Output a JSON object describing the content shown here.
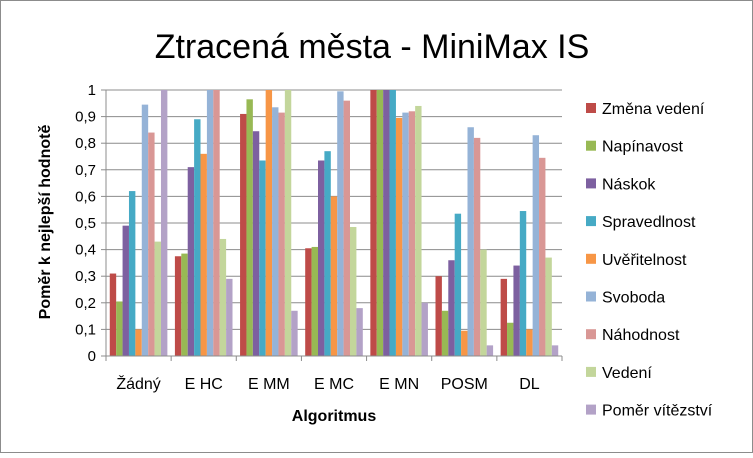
{
  "chart_data": {
    "type": "bar",
    "title": "Ztracená města - MiniMax IS",
    "xlabel": "Algoritmus",
    "ylabel": "Poměr k nejlepší hodnotě",
    "ylim": [
      0,
      1
    ],
    "yticks": [
      "0",
      "0,1",
      "0,2",
      "0,3",
      "0,4",
      "0,5",
      "0,6",
      "0,7",
      "0,8",
      "0,9",
      "1"
    ],
    "grid": true,
    "legend_position": "right",
    "categories": [
      "Žádný",
      "E HC",
      "E MM",
      "E MC",
      "E MN",
      "POSM",
      "DL"
    ],
    "series": [
      {
        "name": "Změna vedení",
        "color": "#BE4B48",
        "values": [
          0.31,
          0.375,
          0.91,
          0.405,
          1.0,
          0.3,
          0.29
        ]
      },
      {
        "name": "Napínavost",
        "color": "#98B954",
        "values": [
          0.205,
          0.385,
          0.965,
          0.41,
          1.0,
          0.17,
          0.125
        ]
      },
      {
        "name": "Náskok",
        "color": "#7D60A0",
        "values": [
          0.49,
          0.71,
          0.845,
          0.735,
          1.0,
          0.36,
          0.34
        ]
      },
      {
        "name": "Spravedlnost",
        "color": "#46AAC5",
        "values": [
          0.62,
          0.89,
          0.735,
          0.77,
          1.0,
          0.535,
          0.545
        ]
      },
      {
        "name": "Uvěřitelnost",
        "color": "#F79646",
        "values": [
          0.1,
          0.76,
          1.0,
          0.6,
          0.895,
          0.095,
          0.1
        ]
      },
      {
        "name": "Svoboda",
        "color": "#95B3D7",
        "values": [
          0.945,
          1.0,
          0.935,
          0.995,
          0.915,
          0.86,
          0.83
        ]
      },
      {
        "name": "Náhodnost",
        "color": "#D99795",
        "values": [
          0.84,
          1.0,
          0.915,
          0.96,
          0.92,
          0.82,
          0.745
        ]
      },
      {
        "name": "Vedení",
        "color": "#C3D69B",
        "values": [
          0.43,
          0.44,
          1.0,
          0.485,
          0.94,
          0.4,
          0.37
        ]
      },
      {
        "name": "Poměr vítězství",
        "color": "#B3A2C7",
        "values": [
          1.0,
          0.29,
          0.17,
          0.18,
          0.2,
          0.04,
          0.04
        ]
      }
    ]
  }
}
